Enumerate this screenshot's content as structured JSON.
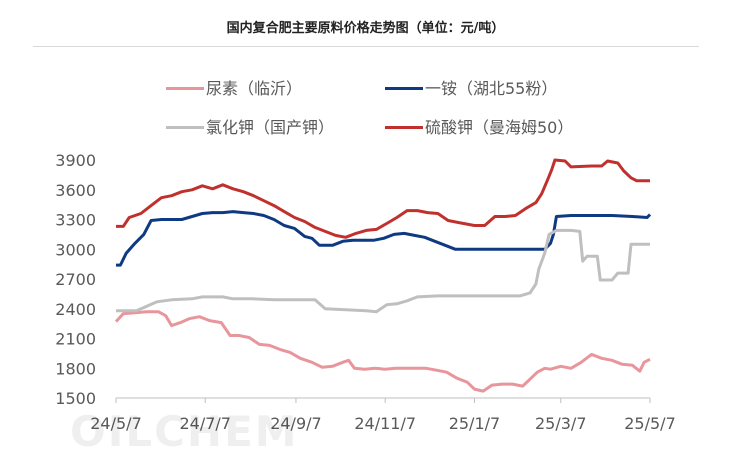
{
  "title": "国内复合肥主要原料价格走势图（单位：元/吨）",
  "watermark": "OILCHEM",
  "chart_data": {
    "type": "line",
    "title": "国内复合肥主要原料价格走势图（单位：元/吨）",
    "xlabel": "",
    "ylabel": "",
    "ylim": [
      1500,
      3900
    ],
    "yticks": [
      1500,
      1800,
      2100,
      2400,
      2700,
      3000,
      3300,
      3600,
      3900
    ],
    "ytick_labels": [
      "1500",
      "1800",
      "2100",
      "2400",
      "2700",
      "3000",
      "3300",
      "3600",
      "3900"
    ],
    "xlim": [
      "2024-05-07",
      "2025-05-07"
    ],
    "xticks": [
      "2024-05-07",
      "2024-07-07",
      "2024-09-07",
      "2024-11-07",
      "2025-01-07",
      "2025-03-07",
      "2025-05-07"
    ],
    "xtick_labels": [
      "24/5/7",
      "24/7/7",
      "24/9/7",
      "24/11/7",
      "25/1/7",
      "25/3/7",
      "25/5/7"
    ],
    "grid": false,
    "legend_position": "top",
    "series": [
      {
        "name": "尿素（临沂）",
        "color": "#e8959c",
        "points": [
          [
            "2024-05-07",
            2270
          ],
          [
            "2024-05-12",
            2350
          ],
          [
            "2024-05-20",
            2360
          ],
          [
            "2024-05-28",
            2370
          ],
          [
            "2024-06-05",
            2370
          ],
          [
            "2024-06-10",
            2330
          ],
          [
            "2024-06-14",
            2230
          ],
          [
            "2024-06-20",
            2260
          ],
          [
            "2024-06-26",
            2300
          ],
          [
            "2024-07-03",
            2320
          ],
          [
            "2024-07-10",
            2280
          ],
          [
            "2024-07-18",
            2260
          ],
          [
            "2024-07-24",
            2130
          ],
          [
            "2024-07-30",
            2130
          ],
          [
            "2024-08-06",
            2110
          ],
          [
            "2024-08-13",
            2040
          ],
          [
            "2024-08-20",
            2030
          ],
          [
            "2024-08-27",
            1990
          ],
          [
            "2024-09-03",
            1960
          ],
          [
            "2024-09-10",
            1900
          ],
          [
            "2024-09-18",
            1860
          ],
          [
            "2024-09-25",
            1810
          ],
          [
            "2024-10-02",
            1820
          ],
          [
            "2024-10-09",
            1860
          ],
          [
            "2024-10-13",
            1880
          ],
          [
            "2024-10-17",
            1800
          ],
          [
            "2024-10-24",
            1790
          ],
          [
            "2024-10-31",
            1800
          ],
          [
            "2024-11-07",
            1790
          ],
          [
            "2024-11-14",
            1800
          ],
          [
            "2024-11-21",
            1800
          ],
          [
            "2024-11-28",
            1800
          ],
          [
            "2024-12-05",
            1800
          ],
          [
            "2024-12-12",
            1780
          ],
          [
            "2024-12-19",
            1760
          ],
          [
            "2024-12-26",
            1700
          ],
          [
            "2025-01-02",
            1660
          ],
          [
            "2025-01-07",
            1590
          ],
          [
            "2025-01-13",
            1570
          ],
          [
            "2025-01-19",
            1630
          ],
          [
            "2025-01-26",
            1640
          ],
          [
            "2025-02-02",
            1640
          ],
          [
            "2025-02-09",
            1620
          ],
          [
            "2025-02-14",
            1690
          ],
          [
            "2025-02-19",
            1760
          ],
          [
            "2025-02-24",
            1800
          ],
          [
            "2025-02-28",
            1790
          ],
          [
            "2025-03-07",
            1820
          ],
          [
            "2025-03-14",
            1800
          ],
          [
            "2025-03-21",
            1860
          ],
          [
            "2025-03-28",
            1940
          ],
          [
            "2025-04-04",
            1900
          ],
          [
            "2025-04-11",
            1880
          ],
          [
            "2025-04-18",
            1840
          ],
          [
            "2025-04-25",
            1830
          ],
          [
            "2025-04-30",
            1770
          ],
          [
            "2025-05-03",
            1860
          ],
          [
            "2025-05-07",
            1890
          ]
        ]
      },
      {
        "name": "一铵（湖北55粉）",
        "color": "#0e3a83",
        "points": [
          [
            "2024-05-07",
            2840
          ],
          [
            "2024-05-10",
            2840
          ],
          [
            "2024-05-14",
            2960
          ],
          [
            "2024-05-20",
            3060
          ],
          [
            "2024-05-26",
            3150
          ],
          [
            "2024-05-31",
            3290
          ],
          [
            "2024-06-07",
            3300
          ],
          [
            "2024-06-14",
            3300
          ],
          [
            "2024-06-21",
            3300
          ],
          [
            "2024-06-28",
            3330
          ],
          [
            "2024-07-05",
            3360
          ],
          [
            "2024-07-12",
            3370
          ],
          [
            "2024-07-19",
            3370
          ],
          [
            "2024-07-26",
            3380
          ],
          [
            "2024-08-02",
            3370
          ],
          [
            "2024-08-09",
            3360
          ],
          [
            "2024-08-16",
            3340
          ],
          [
            "2024-08-23",
            3300
          ],
          [
            "2024-08-30",
            3240
          ],
          [
            "2024-09-06",
            3210
          ],
          [
            "2024-09-13",
            3130
          ],
          [
            "2024-09-18",
            3110
          ],
          [
            "2024-09-23",
            3040
          ],
          [
            "2024-10-02",
            3040
          ],
          [
            "2024-10-09",
            3080
          ],
          [
            "2024-10-16",
            3090
          ],
          [
            "2024-10-23",
            3090
          ],
          [
            "2024-10-30",
            3090
          ],
          [
            "2024-11-06",
            3110
          ],
          [
            "2024-11-13",
            3150
          ],
          [
            "2024-11-20",
            3160
          ],
          [
            "2024-11-27",
            3140
          ],
          [
            "2024-12-04",
            3120
          ],
          [
            "2024-12-11",
            3080
          ],
          [
            "2024-12-18",
            3040
          ],
          [
            "2024-12-25",
            3000
          ],
          [
            "2025-01-07",
            3000
          ],
          [
            "2025-01-21",
            3000
          ],
          [
            "2025-02-04",
            3000
          ],
          [
            "2025-02-14",
            3000
          ],
          [
            "2025-02-24",
            3000
          ],
          [
            "2025-02-28",
            3060
          ],
          [
            "2025-03-02",
            3150
          ],
          [
            "2025-03-04",
            3330
          ],
          [
            "2025-03-14",
            3340
          ],
          [
            "2025-03-28",
            3340
          ],
          [
            "2025-04-11",
            3340
          ],
          [
            "2025-04-25",
            3330
          ],
          [
            "2025-05-05",
            3320
          ],
          [
            "2025-05-07",
            3350
          ]
        ]
      },
      {
        "name": "氯化钾（国产钾）",
        "color": "#bfbfbf",
        "points": [
          [
            "2024-05-07",
            2380
          ],
          [
            "2024-05-21",
            2380
          ],
          [
            "2024-06-04",
            2470
          ],
          [
            "2024-06-14",
            2490
          ],
          [
            "2024-06-28",
            2500
          ],
          [
            "2024-07-05",
            2520
          ],
          [
            "2024-07-19",
            2520
          ],
          [
            "2024-07-26",
            2500
          ],
          [
            "2024-08-09",
            2500
          ],
          [
            "2024-08-23",
            2490
          ],
          [
            "2024-09-06",
            2490
          ],
          [
            "2024-09-20",
            2490
          ],
          [
            "2024-09-27",
            2400
          ],
          [
            "2024-10-11",
            2390
          ],
          [
            "2024-10-25",
            2380
          ],
          [
            "2024-11-01",
            2370
          ],
          [
            "2024-11-08",
            2440
          ],
          [
            "2024-11-15",
            2450
          ],
          [
            "2024-11-22",
            2480
          ],
          [
            "2024-11-29",
            2520
          ],
          [
            "2024-12-13",
            2530
          ],
          [
            "2024-12-27",
            2530
          ],
          [
            "2025-01-10",
            2530
          ],
          [
            "2025-01-24",
            2530
          ],
          [
            "2025-02-07",
            2530
          ],
          [
            "2025-02-14",
            2560
          ],
          [
            "2025-02-18",
            2650
          ],
          [
            "2025-02-20",
            2800
          ],
          [
            "2025-02-24",
            2960
          ],
          [
            "2025-02-27",
            3150
          ],
          [
            "2025-03-04",
            3190
          ],
          [
            "2025-03-14",
            3190
          ],
          [
            "2025-03-20",
            3180
          ],
          [
            "2025-03-22",
            2880
          ],
          [
            "2025-03-25",
            2930
          ],
          [
            "2025-04-01",
            2930
          ],
          [
            "2025-04-03",
            2690
          ],
          [
            "2025-04-11",
            2690
          ],
          [
            "2025-04-15",
            2760
          ],
          [
            "2025-04-22",
            2760
          ],
          [
            "2025-04-24",
            3050
          ],
          [
            "2025-05-07",
            3050
          ]
        ]
      },
      {
        "name": "硫酸钾（曼海姆50）",
        "color": "#c0312e",
        "points": [
          [
            "2024-05-07",
            3230
          ],
          [
            "2024-05-12",
            3230
          ],
          [
            "2024-05-16",
            3320
          ],
          [
            "2024-05-24",
            3360
          ],
          [
            "2024-05-31",
            3440
          ],
          [
            "2024-06-07",
            3520
          ],
          [
            "2024-06-14",
            3540
          ],
          [
            "2024-06-21",
            3580
          ],
          [
            "2024-06-28",
            3600
          ],
          [
            "2024-07-05",
            3640
          ],
          [
            "2024-07-12",
            3610
          ],
          [
            "2024-07-19",
            3650
          ],
          [
            "2024-07-26",
            3610
          ],
          [
            "2024-08-02",
            3580
          ],
          [
            "2024-08-09",
            3540
          ],
          [
            "2024-08-16",
            3490
          ],
          [
            "2024-08-23",
            3440
          ],
          [
            "2024-08-30",
            3380
          ],
          [
            "2024-09-06",
            3320
          ],
          [
            "2024-09-13",
            3280
          ],
          [
            "2024-09-20",
            3220
          ],
          [
            "2024-09-27",
            3180
          ],
          [
            "2024-10-04",
            3140
          ],
          [
            "2024-10-11",
            3120
          ],
          [
            "2024-10-18",
            3160
          ],
          [
            "2024-10-25",
            3190
          ],
          [
            "2024-11-01",
            3200
          ],
          [
            "2024-11-08",
            3260
          ],
          [
            "2024-11-15",
            3320
          ],
          [
            "2024-11-22",
            3390
          ],
          [
            "2024-11-29",
            3390
          ],
          [
            "2024-12-06",
            3370
          ],
          [
            "2024-12-13",
            3360
          ],
          [
            "2024-12-20",
            3290
          ],
          [
            "2024-12-27",
            3270
          ],
          [
            "2025-01-07",
            3240
          ],
          [
            "2025-01-14",
            3240
          ],
          [
            "2025-01-21",
            3330
          ],
          [
            "2025-01-28",
            3330
          ],
          [
            "2025-02-04",
            3340
          ],
          [
            "2025-02-11",
            3410
          ],
          [
            "2025-02-18",
            3470
          ],
          [
            "2025-02-22",
            3560
          ],
          [
            "2025-02-26",
            3700
          ],
          [
            "2025-03-01",
            3810
          ],
          [
            "2025-03-03",
            3900
          ],
          [
            "2025-03-10",
            3890
          ],
          [
            "2025-03-14",
            3830
          ],
          [
            "2025-03-28",
            3840
          ],
          [
            "2025-04-04",
            3840
          ],
          [
            "2025-04-08",
            3890
          ],
          [
            "2025-04-15",
            3870
          ],
          [
            "2025-04-19",
            3790
          ],
          [
            "2025-04-24",
            3720
          ],
          [
            "2025-04-28",
            3690
          ],
          [
            "2025-05-07",
            3690
          ]
        ]
      }
    ]
  }
}
